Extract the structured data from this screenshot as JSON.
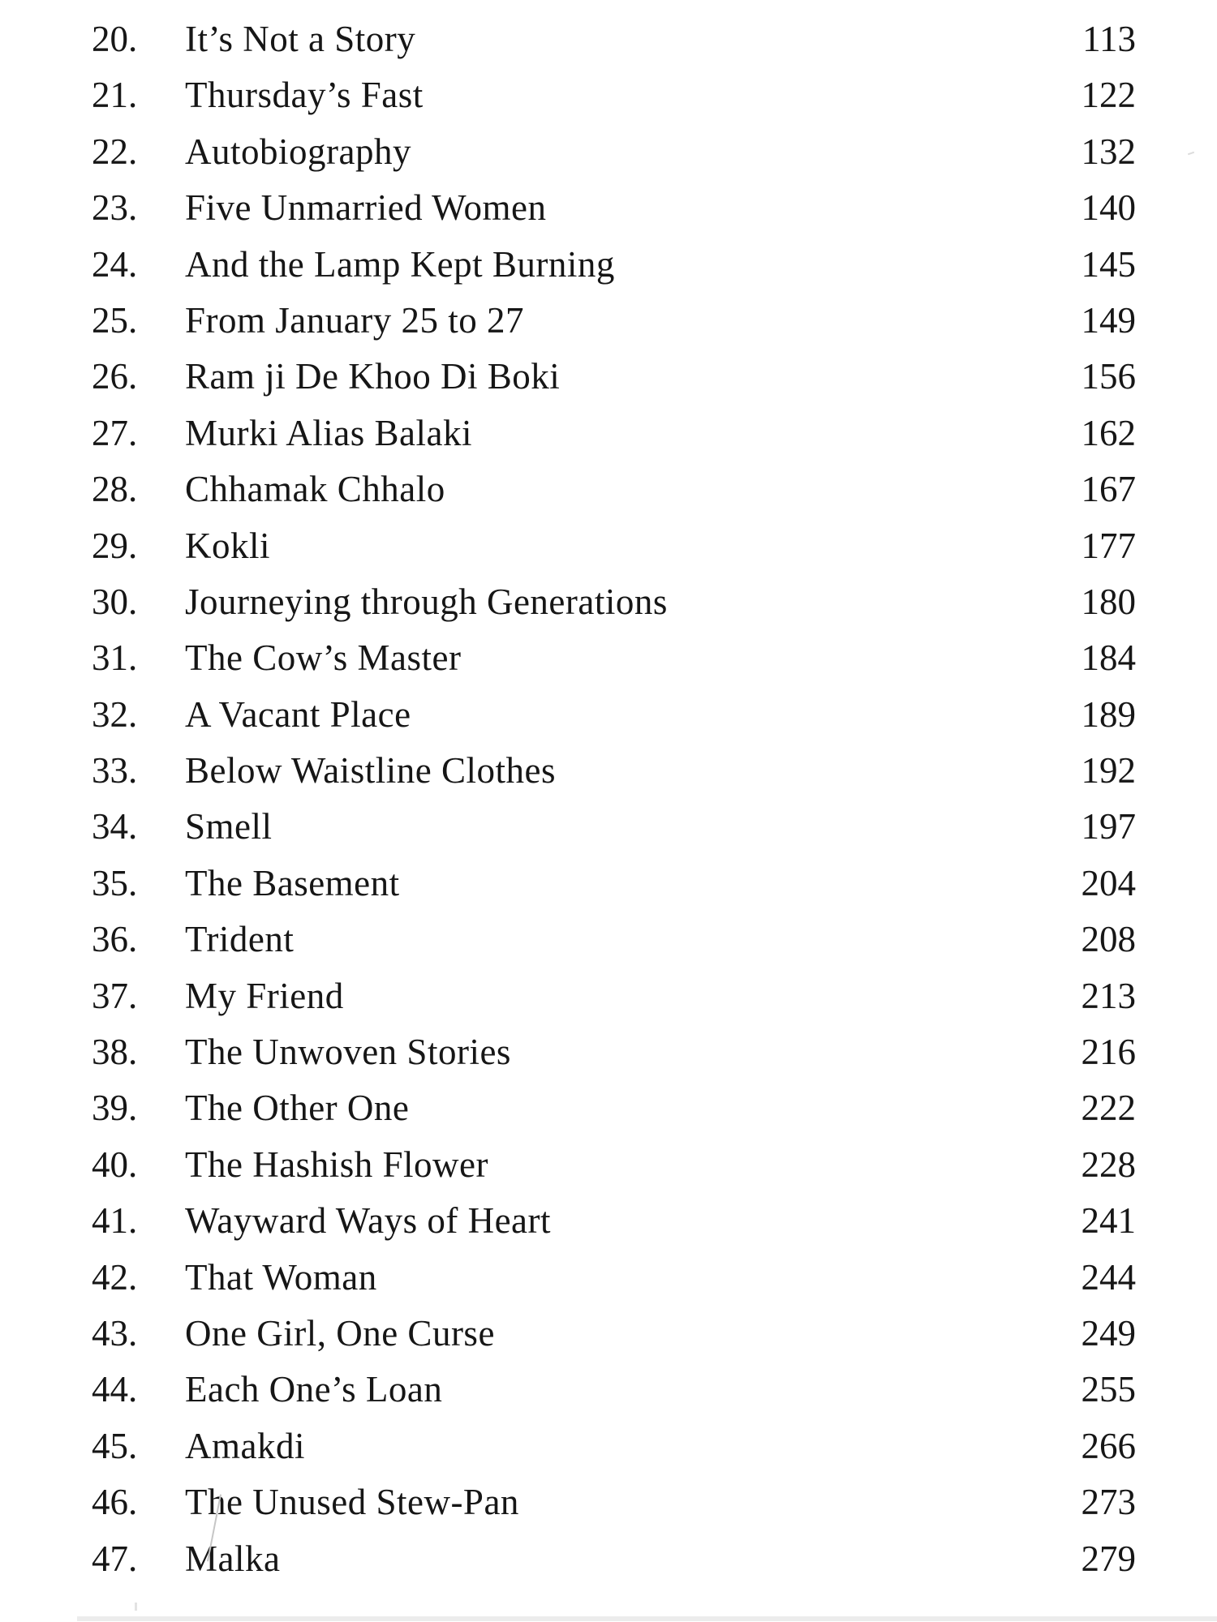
{
  "toc": {
    "entries": [
      {
        "num": "20.",
        "title": "It’s Not a Story",
        "page": "113"
      },
      {
        "num": "21.",
        "title": "Thursday’s Fast",
        "page": "122"
      },
      {
        "num": "22.",
        "title": "Autobiography",
        "page": "132"
      },
      {
        "num": "23.",
        "title": "Five Unmarried Women",
        "page": "140"
      },
      {
        "num": "24.",
        "title": "And the Lamp Kept Burning",
        "page": "145"
      },
      {
        "num": "25.",
        "title": "From January 25 to 27",
        "page": "149"
      },
      {
        "num": "26.",
        "title": "Ram ji De Khoo Di Boki",
        "page": "156"
      },
      {
        "num": "27.",
        "title": "Murki Alias Balaki",
        "page": "162"
      },
      {
        "num": "28.",
        "title": "Chhamak Chhalo",
        "page": "167"
      },
      {
        "num": "29.",
        "title": "Kokli",
        "page": "177"
      },
      {
        "num": "30.",
        "title": "Journeying through Generations",
        "page": "180"
      },
      {
        "num": "31.",
        "title": "The Cow’s Master",
        "page": "184"
      },
      {
        "num": "32.",
        "title": "A Vacant Place",
        "page": "189"
      },
      {
        "num": "33.",
        "title": "Below Waistline Clothes",
        "page": "192"
      },
      {
        "num": "34.",
        "title": "Smell",
        "page": "197"
      },
      {
        "num": "35.",
        "title": "The Basement",
        "page": "204"
      },
      {
        "num": "36.",
        "title": "Trident",
        "page": "208"
      },
      {
        "num": "37.",
        "title": "My Friend",
        "page": "213"
      },
      {
        "num": "38.",
        "title": "The Unwoven Stories",
        "page": "216"
      },
      {
        "num": "39.",
        "title": "The Other One",
        "page": "222"
      },
      {
        "num": "40.",
        "title": "The Hashish Flower",
        "page": "228"
      },
      {
        "num": "41.",
        "title": "Wayward Ways of Heart",
        "page": "241"
      },
      {
        "num": "42.",
        "title": "That Woman",
        "page": "244"
      },
      {
        "num": "43.",
        "title": "One Girl, One Curse",
        "page": "249"
      },
      {
        "num": "44.",
        "title": "Each One’s Loan",
        "page": "255"
      },
      {
        "num": "45.",
        "title": "Amakdi",
        "page": "266"
      },
      {
        "num": "46.",
        "title": "The Unused Stew-Pan",
        "page": "273"
      },
      {
        "num": "47.",
        "title": "Malka",
        "page": "279"
      }
    ]
  }
}
